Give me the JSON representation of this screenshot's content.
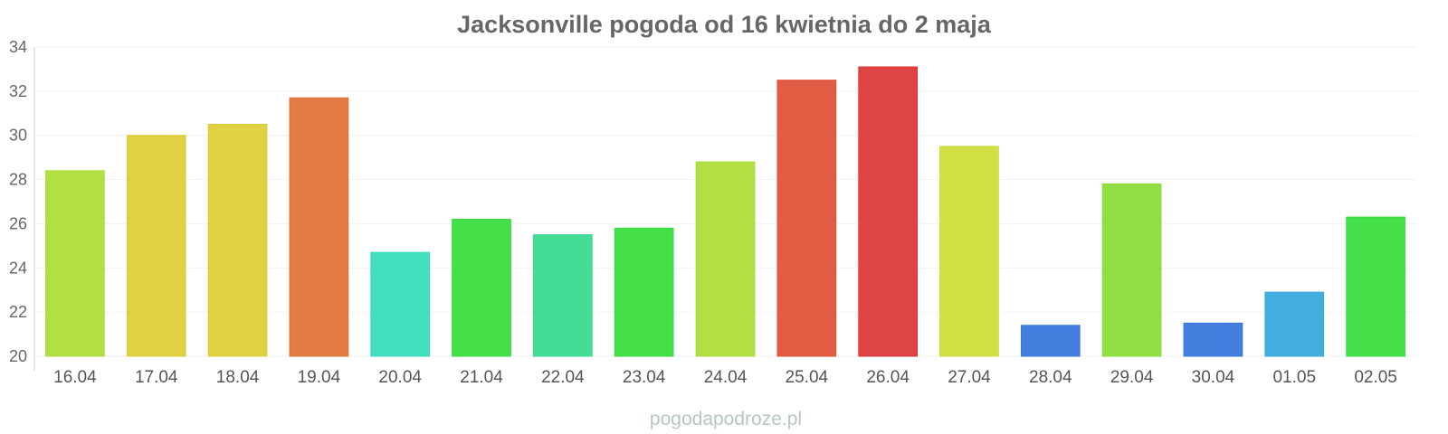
{
  "chart_data": {
    "type": "bar",
    "title": "Jacksonville pogoda od 16 kwietnia do 2 maja",
    "categories": [
      "16.04",
      "17.04",
      "18.04",
      "19.04",
      "20.04",
      "21.04",
      "22.04",
      "23.04",
      "24.04",
      "25.04",
      "26.04",
      "27.04",
      "28.04",
      "29.04",
      "30.04",
      "01.05",
      "02.05"
    ],
    "values": [
      28.4,
      30.0,
      30.5,
      31.7,
      24.7,
      26.2,
      25.5,
      25.8,
      28.8,
      32.5,
      33.1,
      29.5,
      21.4,
      27.8,
      21.5,
      22.9,
      26.3
    ],
    "colors": [
      "#aadc34",
      "#dccc34",
      "#dccc34",
      "#e07034",
      "#34dcb8",
      "#34dc3a",
      "#34da8c",
      "#34dc3a",
      "#aadc34",
      "#de5034",
      "#dc3434",
      "#ccdc34",
      "#3474dc",
      "#88dc34",
      "#3474dc",
      "#34a8dc",
      "#34dc3a"
    ],
    "yticks": [
      "20",
      "22",
      "24",
      "26",
      "28",
      "30",
      "32",
      "34"
    ],
    "ylim": [
      20,
      34
    ],
    "xlabel": "",
    "ylabel": "",
    "grid": true,
    "legend": "none"
  },
  "watermark": "pogodapodroze.pl"
}
